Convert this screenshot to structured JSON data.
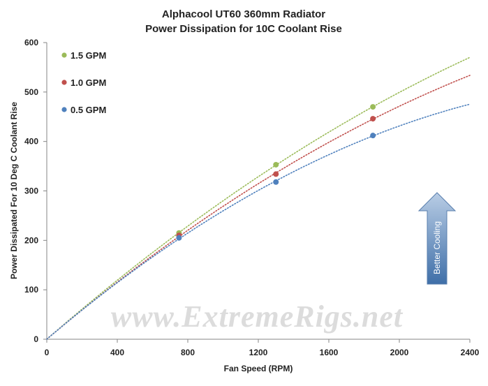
{
  "chart_data": {
    "type": "scatter",
    "title": "Alphacool  UT60 360mm Radiator",
    "subtitle": "Power Dissipation  for 10C Coolant  Rise",
    "xlabel": "Fan Speed (RPM)",
    "ylabel": "Power Dissipated For 10 Deg C Coolant Rise",
    "xlim": [
      0,
      2400
    ],
    "ylim": [
      0,
      600
    ],
    "x_ticks": [
      "0",
      "400",
      "800",
      "1200",
      "1600",
      "2000",
      "2400"
    ],
    "y_ticks": [
      "0",
      "100",
      "200",
      "300",
      "400",
      "500",
      "600"
    ],
    "grid": false,
    "legend_position": "top-left",
    "series": [
      {
        "name": "1.5 GPM",
        "color": "#9bbb59",
        "x": [
          750,
          1300,
          1850
        ],
        "y": [
          215,
          353,
          470
        ],
        "trendline": "dotted"
      },
      {
        "name": "1.0 GPM",
        "color": "#c0504d",
        "x": [
          750,
          1300,
          1850
        ],
        "y": [
          210,
          334,
          446
        ],
        "trendline": "dotted"
      },
      {
        "name": "0.5 GPM",
        "color": "#4f81bd",
        "x": [
          750,
          1300,
          1850
        ],
        "y": [
          205,
          318,
          412
        ],
        "trendline": "dotted"
      }
    ],
    "annotations": {
      "arrow_label": "Better Cooling",
      "watermark": "www.ExtremeRigs.net"
    }
  }
}
